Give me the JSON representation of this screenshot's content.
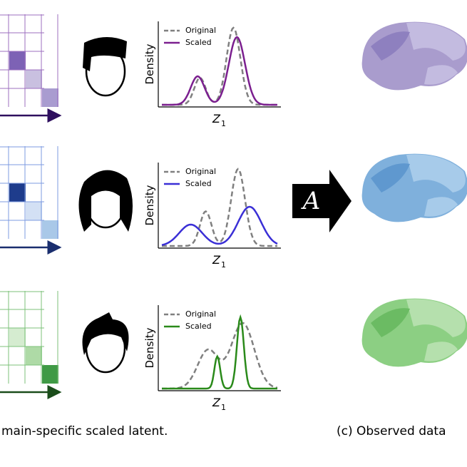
{
  "rows": [
    {
      "legend": [
        "Original",
        "Scaled"
      ],
      "ylabel": "Density",
      "xlabel": "Z",
      "xlabel_sub": "1"
    },
    {
      "legend": [
        "Original",
        "Scaled"
      ],
      "ylabel": "Density",
      "xlabel": "Z",
      "xlabel_sub": "1"
    },
    {
      "legend": [
        "Original",
        "Scaled"
      ],
      "ylabel": "Density",
      "xlabel": "Z",
      "xlabel_sub": "1"
    }
  ],
  "operator": "A",
  "captions": [
    "main-specific scaled latent.",
    "(c) Observed data"
  ]
}
